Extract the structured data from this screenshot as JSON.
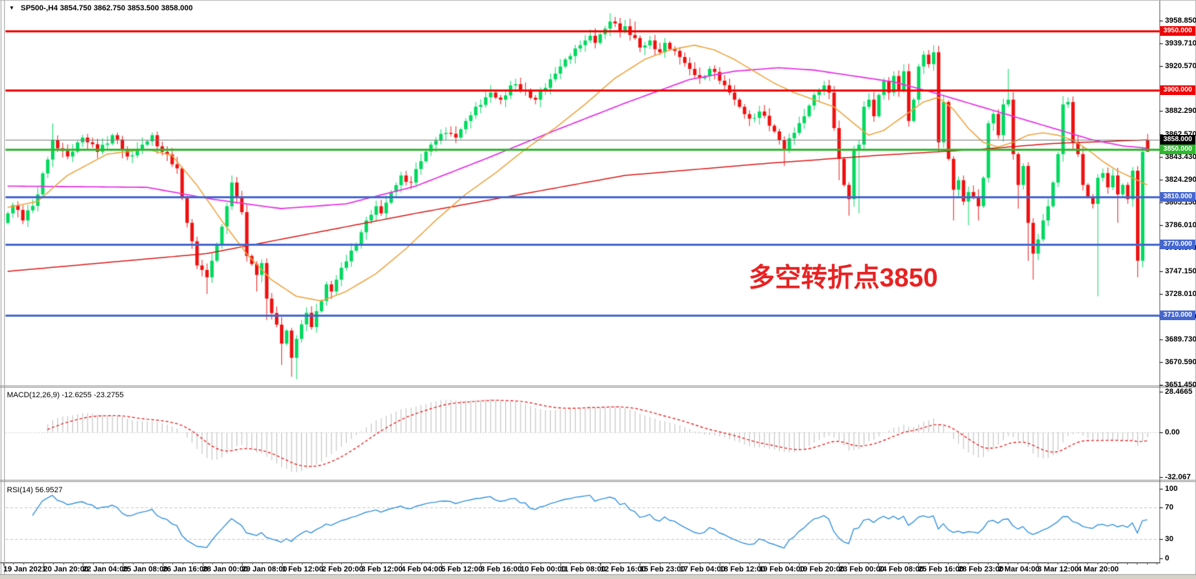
{
  "window": {
    "symbol_readout": {
      "symbol_tf": "SP500-,H4",
      "open": "3854.750",
      "high": "3862.750",
      "low": "3853.500",
      "close": "3858.000"
    }
  },
  "annotation": {
    "text": "多空转折点3850",
    "color": "#e82222"
  },
  "indicators": {
    "macd": {
      "name": "MACD(12,26,9)",
      "values": "-12.6255 -23.2755",
      "axis_labels": [
        "28.4665",
        "0.00",
        "-32.067"
      ]
    },
    "rsi": {
      "name": "RSI(14)",
      "value": "56.9527",
      "axis_labels": [
        "100",
        "70",
        "30",
        "0"
      ]
    }
  },
  "price_axis": {
    "ticks": [
      "3958.850",
      "3939.710",
      "3920.570",
      "3882.290",
      "3862.570",
      "3843.430",
      "3824.290",
      "3805.150",
      "3786.010",
      "3766.870",
      "3747.150",
      "3728.010",
      "3708.870",
      "3689.730",
      "3670.590",
      "3651.450"
    ],
    "tags": [
      {
        "text": "3950.000",
        "price": 3950.0,
        "bg": "#f00000",
        "fg": "#ffffff"
      },
      {
        "text": "3900.000",
        "price": 3900.0,
        "bg": "#f00000",
        "fg": "#ffffff"
      },
      {
        "text": "3858.000",
        "price": 3858.0,
        "bg": "#000000",
        "fg": "#ffffff"
      },
      {
        "text": "3850.000",
        "price": 3850.0,
        "bg": "#2db92d",
        "fg": "#ffffff"
      },
      {
        "text": "3810.000",
        "price": 3810.0,
        "bg": "#4466d0",
        "fg": "#ffffff"
      },
      {
        "text": "3770.000",
        "price": 3770.0,
        "bg": "#4466d0",
        "fg": "#ffffff"
      },
      {
        "text": "3710.000",
        "price": 3710.0,
        "bg": "#4466d0",
        "fg": "#ffffff"
      }
    ]
  },
  "time_axis": {
    "labels": [
      "19 Jan 2021",
      "20 Jan 20:00",
      "22 Jan 04:00",
      "25 Jan 08:00",
      "26 Jan 16:00",
      "28 Jan 00:00",
      "29 Jan 08:00",
      "1 Feb 12:00",
      "2 Feb 20:00",
      "3 Feb 12:00",
      "4 Feb 04:00",
      "5 Feb 12:00",
      "8 Feb 16:00",
      "10 Feb 00:00",
      "11 Feb 08:00",
      "12 Feb 16:00",
      "15 Feb 23:00",
      "17 Feb 04:00",
      "18 Feb 12:00",
      "19 Feb 04:00",
      "19 Feb 20:00",
      "23 Feb 00:00",
      "24 Feb 08:00",
      "25 Feb 16:00",
      "28 Feb 23:00",
      "2 Mar 04:00",
      "3 Mar 12:00",
      "4 Mar 20:00"
    ]
  },
  "chart_data": {
    "type": "candlestick",
    "symbol": "SP500-",
    "timeframe": "H4",
    "bars": 230,
    "ohlc_current": {
      "open": 3854.75,
      "high": 3862.75,
      "low": 3853.5,
      "close": 3858.0
    },
    "close_keyframes": [
      [
        0,
        3796
      ],
      [
        1,
        3803
      ],
      [
        3,
        3790
      ],
      [
        6,
        3812
      ],
      [
        9,
        3858
      ],
      [
        12,
        3844
      ],
      [
        15,
        3860
      ],
      [
        18,
        3848
      ],
      [
        21,
        3862
      ],
      [
        24,
        3844
      ],
      [
        27,
        3854
      ],
      [
        29,
        3862
      ],
      [
        31,
        3848
      ],
      [
        34,
        3834
      ],
      [
        36,
        3788
      ],
      [
        38,
        3752
      ],
      [
        40,
        3742
      ],
      [
        42,
        3770
      ],
      [
        44,
        3802
      ],
      [
        45,
        3822
      ],
      [
        47,
        3797
      ],
      [
        48,
        3760
      ],
      [
        50,
        3744
      ],
      [
        51,
        3754
      ],
      [
        52,
        3724
      ],
      [
        54,
        3702
      ],
      [
        55,
        3686
      ],
      [
        56,
        3697
      ],
      [
        57,
        3674
      ],
      [
        58,
        3690
      ],
      [
        60,
        3712
      ],
      [
        61,
        3700
      ],
      [
        63,
        3722
      ],
      [
        64,
        3736
      ],
      [
        65,
        3730
      ],
      [
        67,
        3750
      ],
      [
        70,
        3770
      ],
      [
        72,
        3790
      ],
      [
        74,
        3802
      ],
      [
        75,
        3796
      ],
      [
        77,
        3814
      ],
      [
        79,
        3828
      ],
      [
        81,
        3822
      ],
      [
        83,
        3840
      ],
      [
        85,
        3854
      ],
      [
        88,
        3864
      ],
      [
        90,
        3860
      ],
      [
        92,
        3874
      ],
      [
        94,
        3886
      ],
      [
        97,
        3898
      ],
      [
        99,
        3892
      ],
      [
        101,
        3904
      ],
      [
        104,
        3900
      ],
      [
        106,
        3892
      ],
      [
        108,
        3902
      ],
      [
        110,
        3914
      ],
      [
        112,
        3926
      ],
      [
        115,
        3938
      ],
      [
        117,
        3946
      ],
      [
        118,
        3940
      ],
      [
        120,
        3952
      ],
      [
        121,
        3958
      ],
      [
        123,
        3950
      ],
      [
        124,
        3954
      ],
      [
        126,
        3944
      ],
      [
        127,
        3936
      ],
      [
        129,
        3942
      ],
      [
        131,
        3932
      ],
      [
        132,
        3940
      ],
      [
        135,
        3928
      ],
      [
        137,
        3918
      ],
      [
        139,
        3910
      ],
      [
        141,
        3918
      ],
      [
        143,
        3908
      ],
      [
        145,
        3898
      ],
      [
        147,
        3886
      ],
      [
        149,
        3876
      ],
      [
        151,
        3882
      ],
      [
        153,
        3870
      ],
      [
        155,
        3858
      ],
      [
        156,
        3850
      ],
      [
        158,
        3864
      ],
      [
        160,
        3878
      ],
      [
        162,
        3896
      ],
      [
        164,
        3904
      ],
      [
        165,
        3898
      ],
      [
        166,
        3868
      ],
      [
        167,
        3842
      ],
      [
        168,
        3820
      ],
      [
        169,
        3808
      ],
      [
        170,
        3850
      ],
      [
        171,
        3854
      ],
      [
        172,
        3886
      ],
      [
        173,
        3892
      ],
      [
        174,
        3878
      ],
      [
        175,
        3896
      ],
      [
        176,
        3908
      ],
      [
        177,
        3898
      ],
      [
        178,
        3912
      ],
      [
        179,
        3900
      ],
      [
        180,
        3916
      ],
      [
        181,
        3874
      ],
      [
        182,
        3892
      ],
      [
        183,
        3920
      ],
      [
        184,
        3930
      ],
      [
        185,
        3922
      ],
      [
        186,
        3932
      ],
      [
        187,
        3856
      ],
      [
        188,
        3890
      ],
      [
        189,
        3842
      ],
      [
        190,
        3816
      ],
      [
        191,
        3824
      ],
      [
        192,
        3806
      ],
      [
        193,
        3814
      ],
      [
        194,
        3810
      ],
      [
        195,
        3802
      ],
      [
        196,
        3826
      ],
      [
        197,
        3872
      ],
      [
        198,
        3880
      ],
      [
        199,
        3862
      ],
      [
        200,
        3888
      ],
      [
        201,
        3892
      ],
      [
        202,
        3846
      ],
      [
        203,
        3820
      ],
      [
        204,
        3836
      ],
      [
        205,
        3788
      ],
      [
        206,
        3762
      ],
      [
        207,
        3774
      ],
      [
        208,
        3790
      ],
      [
        209,
        3802
      ],
      [
        210,
        3822
      ],
      [
        211,
        3846
      ],
      [
        212,
        3888
      ],
      [
        213,
        3890
      ],
      [
        214,
        3856
      ],
      [
        215,
        3846
      ],
      [
        216,
        3820
      ],
      [
        217,
        3810
      ],
      [
        218,
        3804
      ],
      [
        219,
        3826
      ],
      [
        220,
        3830
      ],
      [
        221,
        3818
      ],
      [
        222,
        3828
      ],
      [
        223,
        3812
      ],
      [
        224,
        3820
      ],
      [
        225,
        3808
      ],
      [
        226,
        3832
      ],
      [
        227,
        3756
      ],
      [
        228,
        3848
      ],
      [
        229,
        3858
      ]
    ],
    "wick_highs": [
      [
        9,
        3872
      ],
      [
        45,
        3828
      ],
      [
        121,
        3965
      ],
      [
        126,
        3958
      ],
      [
        132,
        3944
      ],
      [
        180,
        3922
      ],
      [
        186,
        3938
      ],
      [
        201,
        3918
      ],
      [
        212,
        3895
      ],
      [
        228,
        3852
      ],
      [
        229,
        3863
      ]
    ],
    "wick_lows": [
      [
        40,
        3728
      ],
      [
        50,
        3730
      ],
      [
        52,
        3706
      ],
      [
        55,
        3668
      ],
      [
        57,
        3658
      ],
      [
        58,
        3656
      ],
      [
        156,
        3836
      ],
      [
        167,
        3824
      ],
      [
        169,
        3794
      ],
      [
        171,
        3796
      ],
      [
        187,
        3848
      ],
      [
        190,
        3790
      ],
      [
        193,
        3786
      ],
      [
        195,
        3790
      ],
      [
        203,
        3800
      ],
      [
        205,
        3756
      ],
      [
        206,
        3740
      ],
      [
        219,
        3726
      ],
      [
        223,
        3788
      ],
      [
        227,
        3742
      ],
      [
        229,
        3853
      ]
    ],
    "ma_fast_orange": [
      [
        0,
        3801
      ],
      [
        6,
        3806
      ],
      [
        12,
        3828
      ],
      [
        20,
        3846
      ],
      [
        28,
        3850
      ],
      [
        33,
        3845
      ],
      [
        38,
        3820
      ],
      [
        43,
        3790
      ],
      [
        48,
        3762
      ],
      [
        53,
        3740
      ],
      [
        58,
        3726
      ],
      [
        63,
        3722
      ],
      [
        68,
        3730
      ],
      [
        74,
        3745
      ],
      [
        80,
        3766
      ],
      [
        86,
        3790
      ],
      [
        92,
        3812
      ],
      [
        98,
        3830
      ],
      [
        104,
        3850
      ],
      [
        110,
        3868
      ],
      [
        116,
        3888
      ],
      [
        122,
        3910
      ],
      [
        128,
        3926
      ],
      [
        133,
        3934
      ],
      [
        138,
        3938
      ],
      [
        142,
        3934
      ],
      [
        146,
        3926
      ],
      [
        150,
        3916
      ],
      [
        154,
        3906
      ],
      [
        158,
        3898
      ],
      [
        162,
        3892
      ],
      [
        166,
        3886
      ],
      [
        170,
        3872
      ],
      [
        173,
        3862
      ],
      [
        176,
        3866
      ],
      [
        180,
        3878
      ],
      [
        184,
        3890
      ],
      [
        187,
        3894
      ],
      [
        190,
        3884
      ],
      [
        193,
        3868
      ],
      [
        196,
        3856
      ],
      [
        199,
        3852
      ],
      [
        202,
        3856
      ],
      [
        205,
        3862
      ],
      [
        208,
        3864
      ],
      [
        211,
        3862
      ],
      [
        214,
        3858
      ],
      [
        217,
        3850
      ],
      [
        220,
        3840
      ],
      [
        223,
        3832
      ],
      [
        226,
        3826
      ],
      [
        229,
        3820
      ]
    ],
    "ma_mid_magenta": [
      [
        0,
        3819
      ],
      [
        28,
        3818
      ],
      [
        41,
        3808
      ],
      [
        55,
        3800
      ],
      [
        68,
        3804
      ],
      [
        82,
        3819
      ],
      [
        96,
        3842
      ],
      [
        110,
        3866
      ],
      [
        124,
        3889
      ],
      [
        137,
        3909
      ],
      [
        146,
        3916
      ],
      [
        155,
        3919
      ],
      [
        162,
        3917
      ],
      [
        170,
        3912
      ],
      [
        178,
        3907
      ],
      [
        186,
        3898
      ],
      [
        194,
        3888
      ],
      [
        202,
        3878
      ],
      [
        210,
        3868
      ],
      [
        218,
        3858
      ],
      [
        224,
        3853
      ],
      [
        229,
        3851
      ]
    ],
    "ma_slow_red": [
      [
        0,
        3747
      ],
      [
        40,
        3762
      ],
      [
        82,
        3796
      ],
      [
        124,
        3828
      ],
      [
        152,
        3838
      ],
      [
        175,
        3845
      ],
      [
        195,
        3850
      ],
      [
        210,
        3855
      ],
      [
        229,
        3858
      ]
    ],
    "hlines": [
      {
        "price": 3950.0,
        "color": "#f00000",
        "width": 3
      },
      {
        "price": 3900.0,
        "color": "#f00000",
        "width": 3
      },
      {
        "price": 3858.0,
        "color": "#777777",
        "width": 1
      },
      {
        "price": 3850.0,
        "color": "#2db92d",
        "width": 3
      },
      {
        "price": 3810.0,
        "color": "#4466d0",
        "width": 3
      },
      {
        "price": 3770.0,
        "color": "#4466d0",
        "width": 3
      },
      {
        "price": 3710.0,
        "color": "#4466d0",
        "width": 3
      }
    ],
    "macd": {
      "fast": 12,
      "slow": 26,
      "signal": 9,
      "last_main": -12.6255,
      "last_signal": -23.2755,
      "axis_max": 28.4665,
      "axis_min": -32.067
    },
    "rsi": {
      "period": 14,
      "levels": [
        30,
        70
      ],
      "last": 56.9527
    },
    "colors": {
      "bull": "#00d95f",
      "bear": "#ef1010",
      "ma_fast": "#efa33c",
      "ma_mid": "#e632e6",
      "ma_slow": "#dd1111",
      "macd_hist": "#b9b9b9",
      "macd_signal": "#ee2222",
      "rsi_line": "#2f8fdf",
      "level_dash": "#c4c4c4",
      "bid_line": "#777777"
    }
  }
}
